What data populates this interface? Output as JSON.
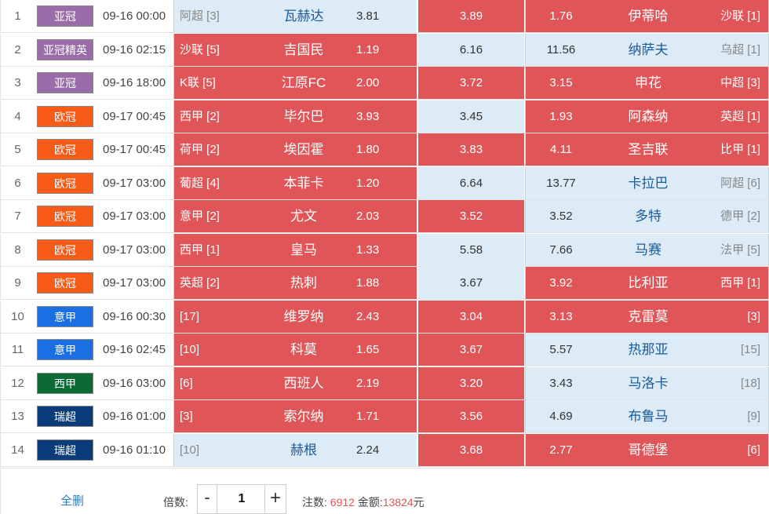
{
  "colors": {
    "red_cell": "#e05558",
    "blue_cell": "#dcebf5",
    "badge_acl": "#9a6da8",
    "badge_ucl": "#f75b17",
    "badge_seriea": "#1a6fe3",
    "badge_laliga": "#0b6a35",
    "badge_allsvenskan": "#0c3b7a"
  },
  "matches": [
    {
      "no": "1",
      "comp": "亚冠",
      "comp_color": "#9a6da8",
      "time": "09-16 00:00",
      "home_league": "阿超 [3]",
      "home": "瓦赫达",
      "home_odds": "3.81",
      "draw": "3.89",
      "away_odds": "1.76",
      "away": "伊蒂哈",
      "away_league": "沙联 [1]",
      "home_hl": false,
      "draw_hl": true,
      "away_hl": true
    },
    {
      "no": "2",
      "comp": "亚冠精英",
      "comp_color": "#9a6da8",
      "time": "09-16 02:15",
      "home_league": "沙联 [5]",
      "home": "吉国民",
      "home_odds": "1.19",
      "draw": "6.16",
      "away_odds": "11.56",
      "away": "纳萨夫",
      "away_league": "乌超 [1]",
      "home_hl": true,
      "draw_hl": false,
      "away_hl": false
    },
    {
      "no": "3",
      "comp": "亚冠",
      "comp_color": "#9a6da8",
      "time": "09-16 18:00",
      "home_league": "K联 [5]",
      "home": "江原FC",
      "home_odds": "2.00",
      "draw": "3.72",
      "away_odds": "3.15",
      "away": "申花",
      "away_league": "中超 [3]",
      "home_hl": true,
      "draw_hl": true,
      "away_hl": true
    },
    {
      "no": "4",
      "comp": "欧冠",
      "comp_color": "#f75b17",
      "time": "09-17 00:45",
      "home_league": "西甲 [2]",
      "home": "毕尔巴",
      "home_odds": "3.93",
      "draw": "3.45",
      "away_odds": "1.93",
      "away": "阿森纳",
      "away_league": "英超 [1]",
      "home_hl": true,
      "draw_hl": false,
      "away_hl": true
    },
    {
      "no": "5",
      "comp": "欧冠",
      "comp_color": "#f75b17",
      "time": "09-17 00:45",
      "home_league": "荷甲 [2]",
      "home": "埃因霍",
      "home_odds": "1.80",
      "draw": "3.83",
      "away_odds": "4.11",
      "away": "圣吉联",
      "away_league": "比甲 [1]",
      "home_hl": true,
      "draw_hl": true,
      "away_hl": true
    },
    {
      "no": "6",
      "comp": "欧冠",
      "comp_color": "#f75b17",
      "time": "09-17 03:00",
      "home_league": "葡超 [4]",
      "home": "本菲卡",
      "home_odds": "1.20",
      "draw": "6.64",
      "away_odds": "13.77",
      "away": "卡拉巴",
      "away_league": "阿超 [6]",
      "home_hl": true,
      "draw_hl": false,
      "away_hl": false
    },
    {
      "no": "7",
      "comp": "欧冠",
      "comp_color": "#f75b17",
      "time": "09-17 03:00",
      "home_league": "意甲 [2]",
      "home": "尤文",
      "home_odds": "2.03",
      "draw": "3.52",
      "away_odds": "3.52",
      "away": "多特",
      "away_league": "德甲 [2]",
      "home_hl": true,
      "draw_hl": true,
      "away_hl": false
    },
    {
      "no": "8",
      "comp": "欧冠",
      "comp_color": "#f75b17",
      "time": "09-17 03:00",
      "home_league": "西甲 [1]",
      "home": "皇马",
      "home_odds": "1.33",
      "draw": "5.58",
      "away_odds": "7.66",
      "away": "马赛",
      "away_league": "法甲 [5]",
      "home_hl": true,
      "draw_hl": false,
      "away_hl": false
    },
    {
      "no": "9",
      "comp": "欧冠",
      "comp_color": "#f75b17",
      "time": "09-17 03:00",
      "home_league": "英超 [2]",
      "home": "热刺",
      "home_odds": "1.88",
      "draw": "3.67",
      "away_odds": "3.92",
      "away": "比利亚",
      "away_league": "西甲 [1]",
      "home_hl": true,
      "draw_hl": false,
      "away_hl": true
    },
    {
      "no": "10",
      "comp": "意甲",
      "comp_color": "#1a6fe3",
      "time": "09-16 00:30",
      "home_league": "[17]",
      "home": "维罗纳",
      "home_odds": "2.43",
      "draw": "3.04",
      "away_odds": "3.13",
      "away": "克雷莫",
      "away_league": "[3]",
      "home_hl": true,
      "draw_hl": true,
      "away_hl": true
    },
    {
      "no": "11",
      "comp": "意甲",
      "comp_color": "#1a6fe3",
      "time": "09-16 02:45",
      "home_league": "[10]",
      "home": "科莫",
      "home_odds": "1.65",
      "draw": "3.67",
      "away_odds": "5.57",
      "away": "热那亚",
      "away_league": "[15]",
      "home_hl": true,
      "draw_hl": true,
      "away_hl": false
    },
    {
      "no": "12",
      "comp": "西甲",
      "comp_color": "#0b6a35",
      "time": "09-16 03:00",
      "home_league": "[6]",
      "home": "西班人",
      "home_odds": "2.19",
      "draw": "3.20",
      "away_odds": "3.43",
      "away": "马洛卡",
      "away_league": "[18]",
      "home_hl": true,
      "draw_hl": true,
      "away_hl": false
    },
    {
      "no": "13",
      "comp": "瑞超",
      "comp_color": "#0c3b7a",
      "time": "09-16 01:00",
      "home_league": "[3]",
      "home": "索尔纳",
      "home_odds": "1.71",
      "draw": "3.56",
      "away_odds": "4.69",
      "away": "布鲁马",
      "away_league": "[9]",
      "home_hl": true,
      "draw_hl": true,
      "away_hl": false
    },
    {
      "no": "14",
      "comp": "瑞超",
      "comp_color": "#0c3b7a",
      "time": "09-16 01:10",
      "home_league": "[10]",
      "home": "赫根",
      "home_odds": "2.24",
      "draw": "3.68",
      "away_odds": "2.77",
      "away": "哥德堡",
      "away_league": "[6]",
      "home_hl": false,
      "draw_hl": true,
      "away_hl": true
    }
  ],
  "footer": {
    "clear_label": "全删",
    "multiplier_label": "倍数:",
    "minus": "-",
    "plus": "+",
    "multiplier_value": "1",
    "count_label": "注数: ",
    "count_value": "6912",
    "amount_label": " 金额:",
    "amount_value": "13824",
    "currency": "元"
  }
}
